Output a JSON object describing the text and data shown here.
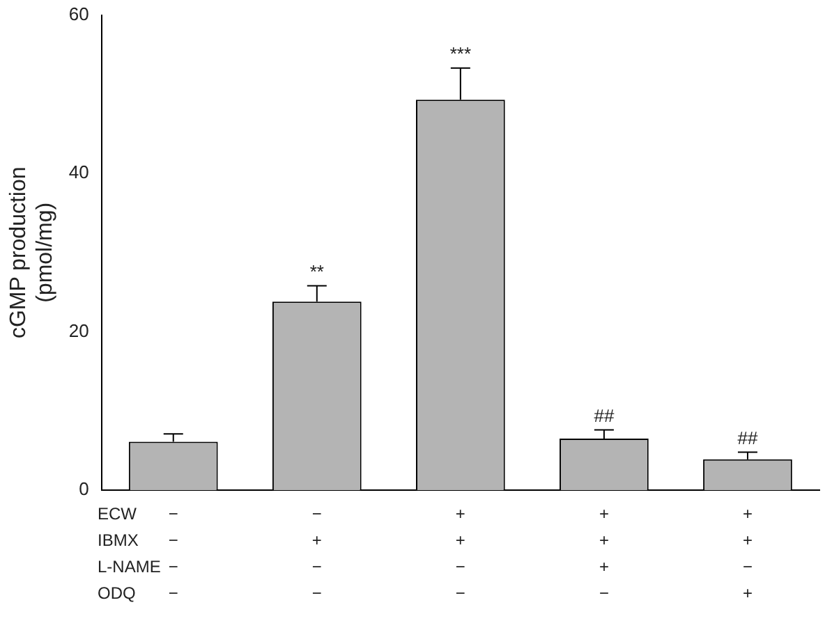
{
  "chart_data": {
    "type": "bar",
    "ylabel": "cGMP production\n(pmol/mg)",
    "categories": [
      "−\n−\n−\n−",
      "−\n+\n−\n−",
      "+\n+\n−\n−",
      "+\n+\n+\n−",
      "+\n+\n−\n+"
    ],
    "values": [
      6.1,
      23.8,
      49.3,
      6.5,
      3.9
    ],
    "errors": [
      1.0,
      2.0,
      4.0,
      1.1,
      0.9
    ],
    "color": "#b4b4b4",
    "ylim": [
      0,
      60
    ],
    "yticks": [
      0,
      20,
      40,
      60
    ],
    "grid": false,
    "legend": false,
    "annotations": [
      "ECW",
      "IBMX",
      "L-NAME",
      "ODQ",
      {
        "text": "**",
        "x": "−\n+\n−\n−",
        "y": 25.8
      },
      {
        "text": "***",
        "x": "+\n+\n−\n−",
        "y": 53.3
      },
      {
        "text": "##",
        "x": "+\n+\n+\n−",
        "y": 7.6
      },
      {
        "text": "##",
        "x": "+\n+\n−\n+",
        "y": 4.8
      }
    ]
  }
}
